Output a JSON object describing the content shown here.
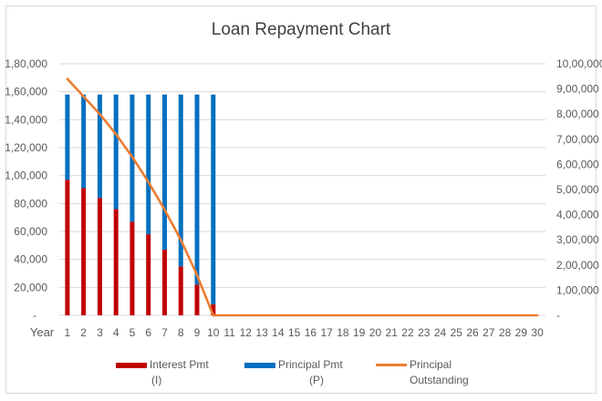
{
  "chart_data": {
    "type": "bar",
    "title": "Loan Repayment Chart",
    "x_axis_label": "Year",
    "categories": [
      "1",
      "2",
      "3",
      "4",
      "5",
      "6",
      "7",
      "8",
      "9",
      "10",
      "11",
      "12",
      "13",
      "14",
      "15",
      "16",
      "17",
      "18",
      "19",
      "20",
      "21",
      "22",
      "23",
      "24",
      "25",
      "26",
      "27",
      "28",
      "29",
      "30"
    ],
    "y_left": {
      "range": [
        0,
        180000
      ],
      "tick_labels": [
        "-",
        "20,000",
        "40,000",
        "60,000",
        "80,000",
        "1,00,000",
        "1,20,000",
        "1,40,000",
        "1,60,000",
        "1,80,000"
      ]
    },
    "y_right": {
      "range": [
        0,
        1000000
      ],
      "tick_labels": [
        "-",
        "1,00,000",
        "2,00,000",
        "3,00,000",
        "4,00,000",
        "5,00,000",
        "6,00,000",
        "7,00,000",
        "8,00,000",
        "9,00,000",
        "10,00,000"
      ]
    },
    "grid": true,
    "legend_position": "bottom",
    "series": [
      {
        "name": "Interest Pmt (I)",
        "type": "stacked-bar",
        "axis": "left",
        "color": "#c00000",
        "values": [
          97000,
          91000,
          84000,
          76000,
          67000,
          58000,
          47000,
          35000,
          22000,
          8000,
          0,
          0,
          0,
          0,
          0,
          0,
          0,
          0,
          0,
          0,
          0,
          0,
          0,
          0,
          0,
          0,
          0,
          0,
          0,
          0
        ]
      },
      {
        "name": "Principal Pmt (P)",
        "type": "stacked-bar",
        "axis": "left",
        "color": "#0070c0",
        "values": [
          61000,
          67000,
          74000,
          82000,
          91000,
          100000,
          111000,
          123000,
          136000,
          150000,
          0,
          0,
          0,
          0,
          0,
          0,
          0,
          0,
          0,
          0,
          0,
          0,
          0,
          0,
          0,
          0,
          0,
          0,
          0,
          0
        ]
      },
      {
        "name": "Principal Outstanding",
        "type": "line",
        "axis": "right",
        "color": "#ed7d31",
        "x_start": 0.9,
        "values": [
          940000,
          870000,
          800000,
          720000,
          630000,
          530000,
          420000,
          300000,
          160000,
          0,
          0,
          0,
          0,
          0,
          0,
          0,
          0,
          0,
          0,
          0,
          0,
          0,
          0,
          0,
          0,
          0,
          0,
          0,
          0,
          0
        ]
      }
    ],
    "legend": [
      {
        "line1": "Interest Pmt",
        "line2": "(I)",
        "color": "#c00000",
        "kind": "rect"
      },
      {
        "line1": "Principal Pmt",
        "line2": "(P)",
        "color": "#0070c0",
        "kind": "rect"
      },
      {
        "line1": "Principal",
        "line2": "Outstanding",
        "color": "#ed7d31",
        "kind": "line"
      }
    ]
  }
}
